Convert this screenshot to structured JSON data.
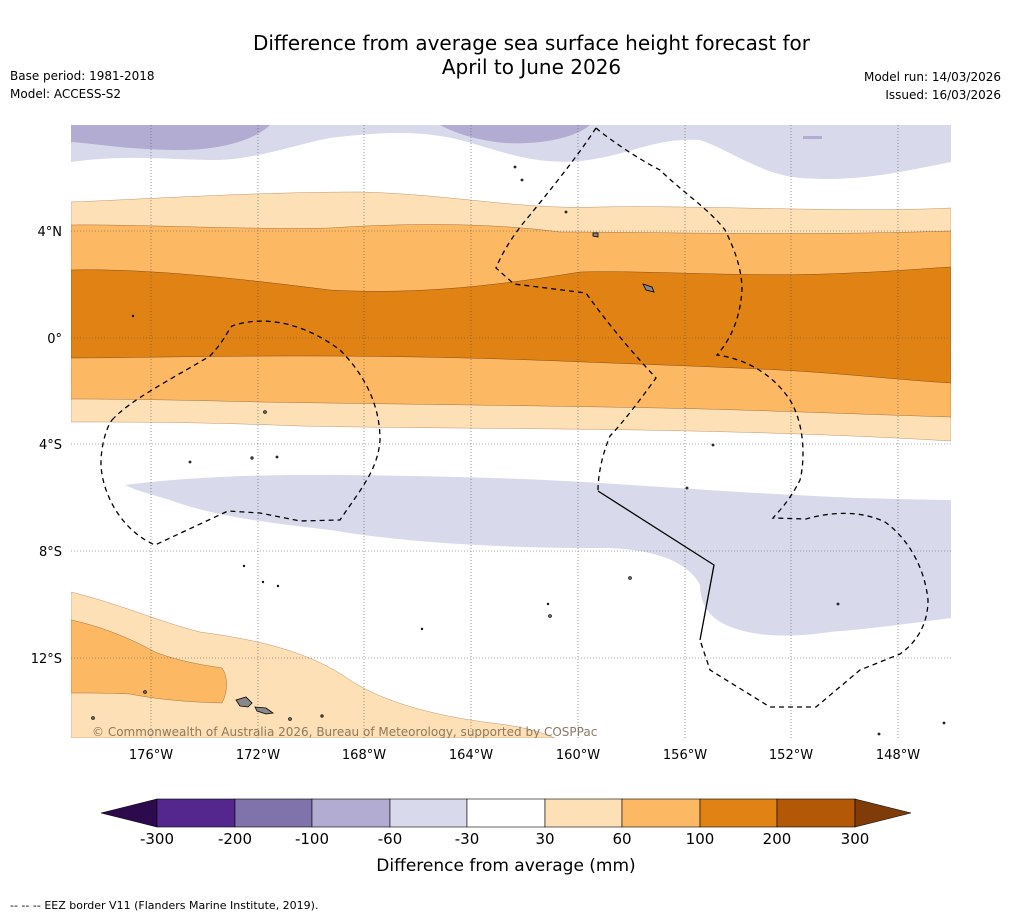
{
  "title": {
    "line1": "Difference from average sea surface height forecast for",
    "line2": "April to June 2026"
  },
  "meta_left": {
    "base_period": "Base period: 1981-2018",
    "model": "Model: ACCESS-S2"
  },
  "meta_right": {
    "model_run": "Model run: 14/03/2026",
    "issued": "Issued: 16/03/2026"
  },
  "map": {
    "lat_labels": [
      "4°N",
      "0°",
      "4°S",
      "8°S",
      "12°S"
    ],
    "lon_labels": [
      "176°W",
      "172°W",
      "168°W",
      "164°W",
      "160°W",
      "156°W",
      "152°W",
      "148°W"
    ],
    "copyright": "© Commonwealth of Australia 2026, Bureau of Meteorology, supported by COSPPac"
  },
  "colorbar": {
    "title": "Difference from average (mm)",
    "tick_labels": [
      "-300",
      "-200",
      "-100",
      "-60",
      "-30",
      "30",
      "60",
      "100",
      "200",
      "300"
    ],
    "colors": [
      "#2d0a4e",
      "#54278f",
      "#8073ac",
      "#b2abd2",
      "#d8daeb",
      "#ffffff",
      "#fee0b6",
      "#fdb863",
      "#e08214",
      "#b35806",
      "#7f3b08"
    ]
  },
  "footer": {
    "eez_note": "EEZ border V11 (Flanders Marine Institute, 2019).",
    "dash_sample": "-- -- --"
  },
  "colors": {
    "light_purple": "#d8daeb",
    "mid_purple": "#b2abd2",
    "light_orange": "#fee0b6",
    "mid_orange": "#fdb863",
    "dark_orange": "#e08214",
    "land": "#888888"
  }
}
